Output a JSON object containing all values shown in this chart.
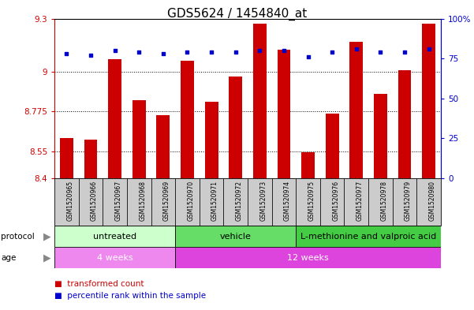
{
  "title": "GDS5624 / 1454840_at",
  "samples": [
    "GSM1520965",
    "GSM1520966",
    "GSM1520967",
    "GSM1520968",
    "GSM1520969",
    "GSM1520970",
    "GSM1520971",
    "GSM1520972",
    "GSM1520973",
    "GSM1520974",
    "GSM1520975",
    "GSM1520976",
    "GSM1520977",
    "GSM1520978",
    "GSM1520979",
    "GSM1520980"
  ],
  "bar_values": [
    8.625,
    8.615,
    9.07,
    8.84,
    8.755,
    9.06,
    8.83,
    8.975,
    9.27,
    9.125,
    8.545,
    8.765,
    9.17,
    8.875,
    9.01,
    9.27
  ],
  "dot_values_pct": [
    78,
    77,
    80,
    79,
    78,
    79,
    79,
    79,
    80,
    80,
    76,
    79,
    81,
    79,
    79,
    81
  ],
  "ymin": 8.4,
  "ymax": 9.3,
  "y2min": 0,
  "y2max": 100,
  "yticks": [
    8.4,
    8.55,
    8.775,
    9.0,
    9.3
  ],
  "ytick_labels": [
    "8.4",
    "8.55",
    "8.775",
    "9",
    "9.3"
  ],
  "y2ticks": [
    0,
    25,
    50,
    75,
    100
  ],
  "y2tick_labels": [
    "0",
    "25",
    "50",
    "75",
    "100%"
  ],
  "bar_color": "#cc0000",
  "dot_color": "#0000cc",
  "protocol_groups": [
    {
      "label": "untreated",
      "start": 0,
      "end": 5,
      "color": "#ccffcc"
    },
    {
      "label": "vehicle",
      "start": 5,
      "end": 10,
      "color": "#66dd66"
    },
    {
      "label": "L-methionine and valproic acid",
      "start": 10,
      "end": 16,
      "color": "#44cc44"
    }
  ],
  "age_groups": [
    {
      "label": "4 weeks",
      "start": 0,
      "end": 5,
      "color": "#ee88ee"
    },
    {
      "label": "12 weeks",
      "start": 5,
      "end": 16,
      "color": "#dd44dd"
    }
  ],
  "sample_box_color": "#cccccc",
  "bar_width": 0.55,
  "title_fontsize": 11,
  "axis_tick_fontsize": 7.5,
  "sample_fontsize": 5.5,
  "group_fontsize": 8,
  "legend_fontsize": 7.5
}
